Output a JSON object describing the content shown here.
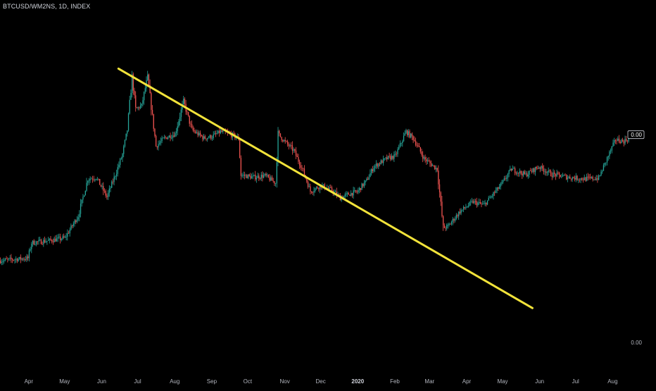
{
  "header": {
    "symbol": "BTCUSD/WM2NS, 1D, INDEX"
  },
  "colors": {
    "background": "#000000",
    "up": "#26a69a",
    "down": "#ef5350",
    "trendline": "#f2e33a",
    "axis_text": "#b2b5be",
    "grid": "#1c1c1c",
    "price_label_bg": "#000000",
    "price_label_border": "#d1d4dc"
  },
  "chart_data": {
    "type": "candlestick",
    "title": "BTCUSD/WM2NS, 1D, INDEX",
    "x_axis": {
      "tick_labels": [
        "Apr",
        "May",
        "Jun",
        "Jul",
        "Aug",
        "Sep",
        "Oct",
        "Nov",
        "Dec",
        "2020",
        "Feb",
        "Mar",
        "Apr",
        "May",
        "Jun",
        "Jul",
        "Aug"
      ],
      "tick_dates": [
        "2019-04-01",
        "2019-05-01",
        "2019-06-01",
        "2019-07-01",
        "2019-08-01",
        "2019-09-01",
        "2019-10-01",
        "2019-11-01",
        "2019-12-01",
        "2020-01-01",
        "2020-02-01",
        "2020-03-01",
        "2020-04-01",
        "2020-05-01",
        "2020-06-01",
        "2020-07-01",
        "2020-08-01"
      ],
      "bold_labels": [
        "2020"
      ]
    },
    "y_axis": {
      "tick_labels": [
        "0.00"
      ],
      "current_value_label": "0.00"
    },
    "price_path": [
      [
        "2019-03-08",
        1.0
      ],
      [
        "2019-03-22",
        1.02
      ],
      [
        "2019-03-31",
        1.03
      ],
      [
        "2019-04-03",
        1.22
      ],
      [
        "2019-04-20",
        1.25
      ],
      [
        "2019-05-01",
        1.28
      ],
      [
        "2019-05-12",
        1.55
      ],
      [
        "2019-05-20",
        2.0
      ],
      [
        "2019-05-27",
        2.02
      ],
      [
        "2019-06-05",
        1.78
      ],
      [
        "2019-06-12",
        2.05
      ],
      [
        "2019-06-18",
        2.3
      ],
      [
        "2019-06-22",
        2.6
      ],
      [
        "2019-06-26",
        3.25
      ],
      [
        "2019-06-29",
        2.85
      ],
      [
        "2019-07-04",
        2.9
      ],
      [
        "2019-07-09",
        3.25
      ],
      [
        "2019-07-16",
        2.4
      ],
      [
        "2019-07-23",
        2.5
      ],
      [
        "2019-08-01",
        2.55
      ],
      [
        "2019-08-08",
        2.95
      ],
      [
        "2019-08-15",
        2.6
      ],
      [
        "2019-08-25",
        2.5
      ],
      [
        "2019-09-01",
        2.52
      ],
      [
        "2019-09-08",
        2.58
      ],
      [
        "2019-09-15",
        2.55
      ],
      [
        "2019-09-23",
        2.5
      ],
      [
        "2019-09-25",
        2.05
      ],
      [
        "2019-10-05",
        2.02
      ],
      [
        "2019-10-15",
        2.04
      ],
      [
        "2019-10-24",
        1.95
      ],
      [
        "2019-10-26",
        2.55
      ],
      [
        "2019-11-01",
        2.45
      ],
      [
        "2019-11-08",
        2.35
      ],
      [
        "2019-11-16",
        2.1
      ],
      [
        "2019-11-22",
        1.85
      ],
      [
        "2019-12-01",
        1.92
      ],
      [
        "2019-12-10",
        1.86
      ],
      [
        "2019-12-17",
        1.77
      ],
      [
        "2019-12-25",
        1.82
      ],
      [
        "2019-12-31",
        1.84
      ],
      [
        "2020-01-08",
        1.98
      ],
      [
        "2020-01-14",
        2.15
      ],
      [
        "2020-01-25",
        2.25
      ],
      [
        "2020-02-01",
        2.28
      ],
      [
        "2020-02-10",
        2.58
      ],
      [
        "2020-02-16",
        2.5
      ],
      [
        "2020-02-25",
        2.25
      ],
      [
        "2020-03-07",
        2.12
      ],
      [
        "2020-03-12",
        1.4
      ],
      [
        "2020-03-16",
        1.42
      ],
      [
        "2020-03-26",
        1.6
      ],
      [
        "2020-04-06",
        1.72
      ],
      [
        "2020-04-15",
        1.68
      ],
      [
        "2020-04-29",
        1.92
      ],
      [
        "2020-05-08",
        2.12
      ],
      [
        "2020-05-20",
        2.05
      ],
      [
        "2020-05-31",
        2.15
      ],
      [
        "2020-06-10",
        2.06
      ],
      [
        "2020-06-25",
        2.02
      ],
      [
        "2020-07-08",
        2.0
      ],
      [
        "2020-07-20",
        2.01
      ],
      [
        "2020-07-27",
        2.25
      ],
      [
        "2020-08-03",
        2.48
      ],
      [
        "2020-08-10",
        2.46
      ],
      [
        "2020-08-17",
        2.52
      ]
    ],
    "trendline": {
      "start": [
        "2019-06-15",
        3.35
      ],
      "end": [
        "2020-05-26",
        0.42
      ]
    },
    "grid": false,
    "legend": "none"
  }
}
